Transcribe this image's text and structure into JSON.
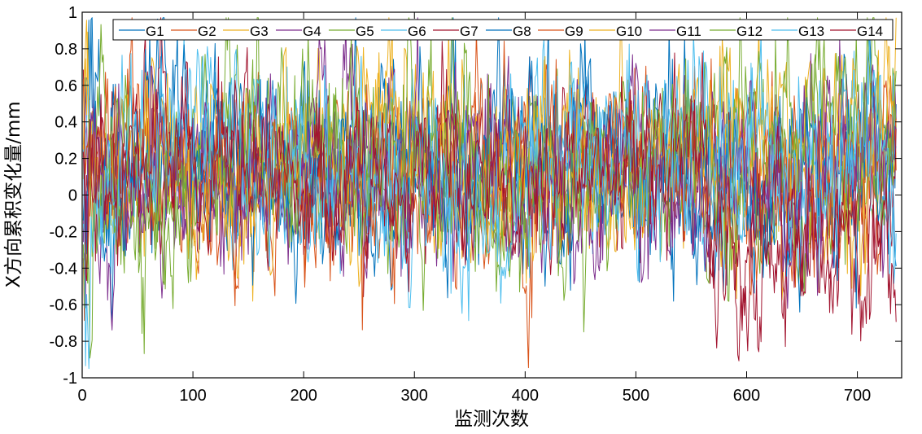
{
  "chart_data": {
    "type": "line",
    "title": "",
    "xlabel": "监测次数",
    "ylabel": "X方向累积变化量/mm",
    "xlim": [
      0,
      740
    ],
    "ylim": [
      -1,
      1
    ],
    "xticks": [
      0,
      100,
      200,
      300,
      400,
      500,
      600,
      700
    ],
    "yticks": [
      -1,
      -0.8,
      -0.6,
      -0.4,
      -0.2,
      0,
      0.2,
      0.4,
      0.6,
      0.8,
      1
    ],
    "n_points": 735,
    "grid": false,
    "legend_position": "top",
    "series": [
      {
        "name": "G1",
        "color": "#0072BD"
      },
      {
        "name": "G2",
        "color": "#D95319"
      },
      {
        "name": "G3",
        "color": "#EDB120"
      },
      {
        "name": "G4",
        "color": "#7E2F8E"
      },
      {
        "name": "G5",
        "color": "#77AC30"
      },
      {
        "name": "G6",
        "color": "#4DBEEE"
      },
      {
        "name": "G7",
        "color": "#A2142F"
      },
      {
        "name": "G8",
        "color": "#0072BD"
      },
      {
        "name": "G9",
        "color": "#D95319"
      },
      {
        "name": "G10",
        "color": "#EDB120"
      },
      {
        "name": "G11",
        "color": "#7E2F8E"
      },
      {
        "name": "G12",
        "color": "#77AC30"
      },
      {
        "name": "G13",
        "color": "#4DBEEE"
      },
      {
        "name": "G14",
        "color": "#A2142F"
      }
    ]
  }
}
